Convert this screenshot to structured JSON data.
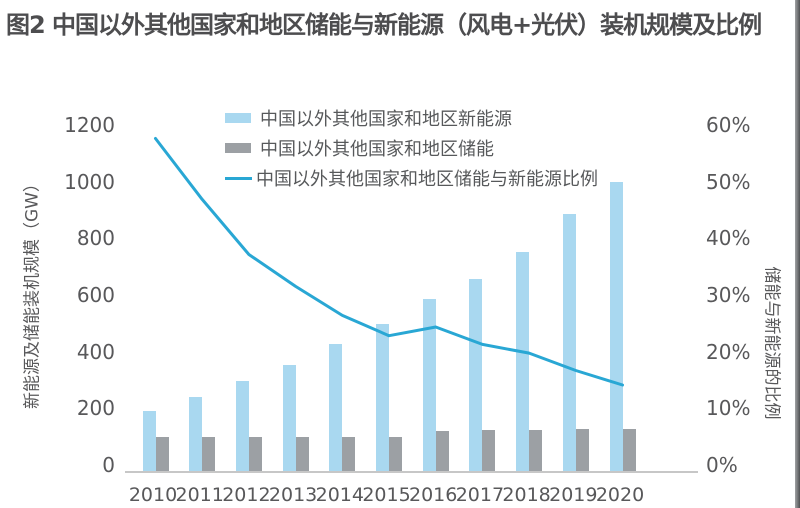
{
  "title": "图2 中国以外其他国家和地区储能与新能源（风电+光伏）装机规模及比例",
  "colors": {
    "new_energy_bar": "#A9D8F0",
    "storage_bar": "#9CA0A4",
    "ratio_line": "#29A7D4",
    "axis_line": "#C7C7C7",
    "tick_text": "#58585A",
    "title_text": "#4D4D4F"
  },
  "chart_data": {
    "type": "bar",
    "subtype": "grouped-bar-with-line-combo",
    "title": "图2 中国以外其他国家和地区储能与新能源（风电+光伏）装机规模及比例",
    "categories": [
      "2010",
      "2011",
      "2012",
      "2013",
      "2014",
      "2015",
      "2016",
      "2017",
      "2018",
      "2019",
      "2020"
    ],
    "series": [
      {
        "name": "中国以外其他国家和地区新能源",
        "type": "bar",
        "axis": "left",
        "unit": "GW",
        "values": [
          210,
          260,
          315,
          370,
          440,
          510,
          595,
          665,
          760,
          890,
          1000
        ]
      },
      {
        "name": "中国以外其他国家和地区储能",
        "type": "bar",
        "axis": "left",
        "unit": "GW",
        "values": [
          120,
          120,
          120,
          120,
          120,
          120,
          142,
          145,
          146,
          149,
          150
        ]
      },
      {
        "name": "中国以外其他国家和地区储能与新能源比例",
        "type": "line",
        "axis": "right",
        "unit": "%",
        "values": [
          57.5,
          47,
          37.5,
          32,
          27,
          23.5,
          25,
          22,
          20.5,
          17.5,
          15
        ]
      }
    ],
    "left_axis": {
      "label": "新能源及储能装机规模（GW）",
      "min": 0,
      "max": 1200,
      "ticks": [
        "0",
        "200",
        "400",
        "600",
        "800",
        "1000",
        "1200"
      ]
    },
    "right_axis": {
      "label": "储能与新能源的比例",
      "min": 0,
      "max": 60,
      "ticks": [
        "0%",
        "10%",
        "20%",
        "30%",
        "40%",
        "50%",
        "60%"
      ]
    },
    "legend_position": "inside-top-left",
    "grid": false
  }
}
